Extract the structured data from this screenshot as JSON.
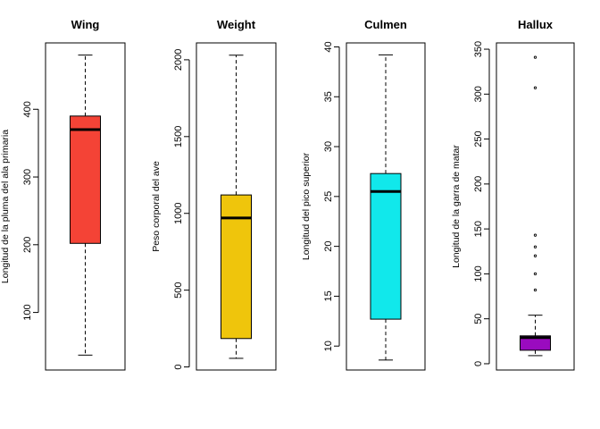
{
  "chart_data": [
    {
      "type": "boxplot",
      "title": "Wing",
      "ylabel": "Longitud de la pluma del ala primaria",
      "color": "#f44336",
      "ylim": [
        15,
        498
      ],
      "ticks": [
        100,
        200,
        300,
        400
      ],
      "tick_labels": [
        "100",
        "200",
        "300",
        "400"
      ],
      "whisker_low": 37,
      "q1": 202,
      "median": 370,
      "q3": 390,
      "whisker_high": 480,
      "outliers": []
    },
    {
      "type": "boxplot",
      "title": "Weight",
      "ylabel": "Peso corporal del ave",
      "color": "#efc50c",
      "ylim": [
        -20,
        2110
      ],
      "ticks": [
        0,
        500,
        1000,
        1500,
        2000
      ],
      "tick_labels": [
        "0",
        "500",
        "1000",
        "1500",
        "2000"
      ],
      "whisker_low": 56,
      "q1": 185,
      "median": 970,
      "q3": 1120,
      "whisker_high": 2030,
      "outliers": []
    },
    {
      "type": "boxplot",
      "title": "Culmen",
      "ylabel": "Longitud del pico superior",
      "color": "#11e8eb",
      "ylim": [
        7.6,
        40.4
      ],
      "ticks": [
        10,
        15,
        20,
        25,
        30,
        35,
        40
      ],
      "tick_labels": [
        "10",
        "15",
        "20",
        "25",
        "30",
        "35",
        "40"
      ],
      "whisker_low": 8.6,
      "q1": 12.7,
      "median": 25.5,
      "q3": 27.3,
      "whisker_high": 39.2,
      "outliers": []
    },
    {
      "type": "boxplot",
      "title": "Hallux",
      "ylabel": "Longitud de la garra de matar",
      "color": "#9a0bbf",
      "ylim": [
        -7,
        357
      ],
      "ticks": [
        0,
        50,
        100,
        150,
        200,
        250,
        300,
        350
      ],
      "tick_labels": [
        "0",
        "50",
        "100",
        "150",
        "200",
        "250",
        "300",
        "350"
      ],
      "whisker_low": 9,
      "q1": 15,
      "median": 29,
      "q3": 31,
      "whisker_high": 54,
      "outliers": [
        82,
        100,
        120,
        130,
        143,
        307,
        341
      ]
    }
  ]
}
